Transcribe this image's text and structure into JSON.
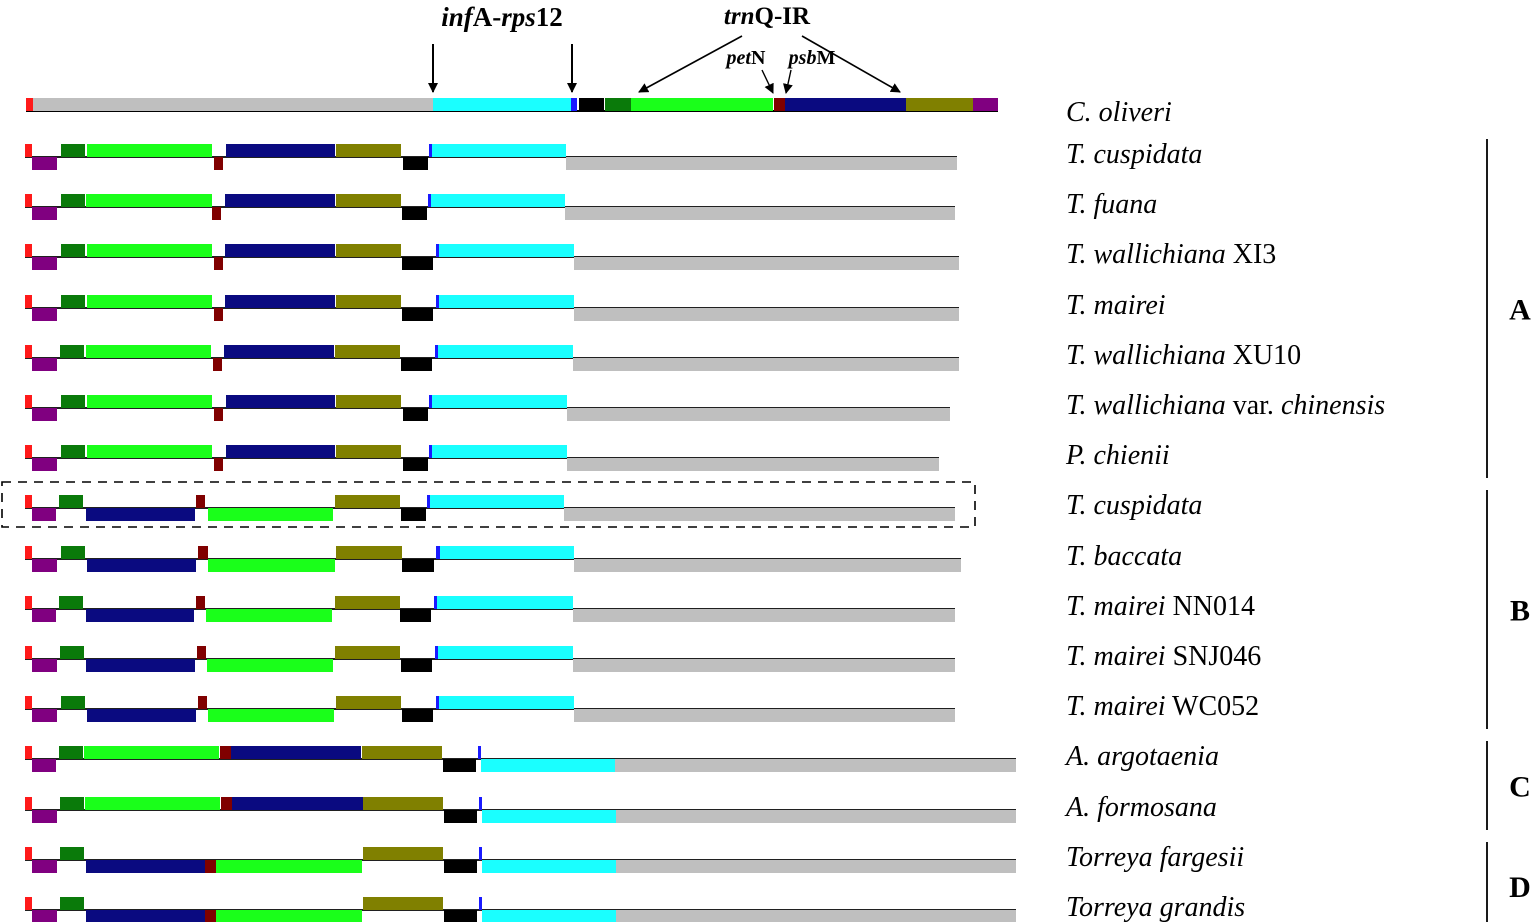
{
  "colors": {
    "red": "#ff1a1a",
    "purple": "#800080",
    "darkgreen": "#0a7a0a",
    "lime": "#1aff1a",
    "maroon": "#800000",
    "navy": "#0a0a80",
    "olive": "#808000",
    "black": "#000000",
    "blue": "#1a1aff",
    "cyan": "#1affff",
    "gray": "#bfbfbf"
  },
  "annotations": {
    "infA_rps12": {
      "italic_1": "inf",
      "plain_1": "A-",
      "italic_2": "rps",
      "plain_2": "12"
    },
    "trnQ_IR": {
      "italic": "trn",
      "plain": "Q-IR"
    },
    "petN": {
      "italic": "pet",
      "plain": "N"
    },
    "psbM": {
      "italic": "psb",
      "plain": "M"
    }
  },
  "reference": {
    "label": "C. oliveri",
    "segments": [
      {
        "color": "red",
        "start": 26,
        "end": 33
      },
      {
        "color": "gray",
        "start": 33,
        "end": 433
      },
      {
        "color": "cyan",
        "start": 433,
        "end": 571
      },
      {
        "color": "blue",
        "start": 571,
        "end": 577
      },
      {
        "color": "black",
        "start": 579,
        "end": 604
      },
      {
        "color": "darkgreen",
        "start": 605,
        "end": 631
      },
      {
        "color": "lime",
        "start": 631,
        "end": 773
      },
      {
        "color": "maroon",
        "start": 774,
        "end": 785
      },
      {
        "color": "navy",
        "start": 785,
        "end": 906
      },
      {
        "color": "olive",
        "start": 906,
        "end": 973
      },
      {
        "color": "purple",
        "start": 973,
        "end": 998
      }
    ]
  },
  "species": [
    {
      "italic": "T. cuspidata",
      "plain": "",
      "line": [
        25,
        957
      ],
      "above": [
        [
          "red",
          25,
          32
        ],
        [
          "darkgreen",
          61,
          85
        ],
        [
          "lime",
          87,
          212
        ],
        [
          "navy",
          226,
          335
        ],
        [
          "olive",
          336,
          401
        ],
        [
          "blue",
          429,
          432
        ],
        [
          "cyan",
          432,
          566
        ]
      ],
      "below": [
        [
          "purple",
          32,
          57
        ],
        [
          "maroon",
          214,
          223
        ],
        [
          "black",
          403,
          428
        ],
        [
          "gray",
          566,
          957
        ]
      ]
    },
    {
      "italic": "T. fuana",
      "plain": "",
      "line": [
        25,
        955
      ],
      "above": [
        [
          "red",
          25,
          32
        ],
        [
          "darkgreen",
          61,
          85
        ],
        [
          "lime",
          86,
          212
        ],
        [
          "navy",
          225,
          335
        ],
        [
          "olive",
          336,
          401
        ],
        [
          "blue",
          428,
          431
        ],
        [
          "cyan",
          431,
          565
        ]
      ],
      "below": [
        [
          "purple",
          32,
          57
        ],
        [
          "maroon",
          212,
          221
        ],
        [
          "black",
          402,
          427
        ],
        [
          "gray",
          565,
          955
        ]
      ]
    },
    {
      "italic": "T. wallichiana",
      "plain": " XI3",
      "line": [
        25,
        959
      ],
      "above": [
        [
          "red",
          25,
          32
        ],
        [
          "darkgreen",
          61,
          85
        ],
        [
          "lime",
          87,
          212
        ],
        [
          "navy",
          225,
          335
        ],
        [
          "olive",
          336,
          401
        ],
        [
          "blue",
          436,
          439
        ],
        [
          "cyan",
          439,
          574
        ]
      ],
      "below": [
        [
          "purple",
          32,
          57
        ],
        [
          "maroon",
          214,
          223
        ],
        [
          "black",
          402,
          433
        ],
        [
          "gray",
          574,
          959
        ]
      ]
    },
    {
      "italic": "T. mairei",
      "plain": "",
      "line": [
        25,
        959
      ],
      "above": [
        [
          "red",
          25,
          32
        ],
        [
          "darkgreen",
          61,
          85
        ],
        [
          "lime",
          87,
          212
        ],
        [
          "navy",
          225,
          335
        ],
        [
          "olive",
          336,
          401
        ],
        [
          "blue",
          436,
          439
        ],
        [
          "cyan",
          439,
          574
        ]
      ],
      "below": [
        [
          "purple",
          32,
          57
        ],
        [
          "maroon",
          214,
          223
        ],
        [
          "black",
          402,
          433
        ],
        [
          "gray",
          574,
          959
        ]
      ]
    },
    {
      "italic": "T. wallichiana",
      "plain": " XU10",
      "line": [
        25,
        959
      ],
      "above": [
        [
          "red",
          25,
          32
        ],
        [
          "darkgreen",
          60,
          84
        ],
        [
          "lime",
          86,
          211
        ],
        [
          "navy",
          224,
          334
        ],
        [
          "olive",
          335,
          400
        ],
        [
          "blue",
          435,
          438
        ],
        [
          "cyan",
          438,
          573
        ]
      ],
      "below": [
        [
          "purple",
          32,
          57
        ],
        [
          "maroon",
          213,
          222
        ],
        [
          "black",
          401,
          432
        ],
        [
          "gray",
          573,
          959
        ]
      ]
    },
    {
      "italic": "T. wallichiana",
      "plain": " var. ",
      "italic2": "chinensis",
      "line": [
        25,
        950
      ],
      "above": [
        [
          "red",
          25,
          32
        ],
        [
          "darkgreen",
          61,
          85
        ],
        [
          "lime",
          87,
          212
        ],
        [
          "navy",
          226,
          335
        ],
        [
          "olive",
          336,
          401
        ],
        [
          "blue",
          429,
          432
        ],
        [
          "cyan",
          432,
          567
        ]
      ],
      "below": [
        [
          "purple",
          32,
          57
        ],
        [
          "maroon",
          214,
          223
        ],
        [
          "black",
          403,
          428
        ],
        [
          "gray",
          567,
          950
        ]
      ]
    },
    {
      "italic": "P. chienii",
      "plain": "",
      "line": [
        25,
        939
      ],
      "above": [
        [
          "red",
          25,
          32
        ],
        [
          "darkgreen",
          61,
          85
        ],
        [
          "lime",
          87,
          212
        ],
        [
          "navy",
          226,
          335
        ],
        [
          "olive",
          336,
          401
        ],
        [
          "blue",
          429,
          432
        ],
        [
          "cyan",
          432,
          567
        ]
      ],
      "below": [
        [
          "purple",
          32,
          57
        ],
        [
          "maroon",
          214,
          223
        ],
        [
          "black",
          403,
          428
        ],
        [
          "gray",
          567,
          939
        ]
      ]
    },
    {
      "italic": "T. cuspidata",
      "plain": "",
      "line": [
        25,
        955
      ],
      "above": [
        [
          "red",
          25,
          32
        ],
        [
          "darkgreen",
          59,
          83
        ],
        [
          "maroon",
          196,
          205
        ],
        [
          "olive",
          335,
          400
        ],
        [
          "blue",
          427,
          430
        ],
        [
          "cyan",
          430,
          564
        ]
      ],
      "below": [
        [
          "purple",
          32,
          56
        ],
        [
          "navy",
          86,
          195
        ],
        [
          "lime",
          208,
          333
        ],
        [
          "black",
          401,
          426
        ],
        [
          "gray",
          564,
          955
        ]
      ]
    },
    {
      "italic": "T. baccata",
      "plain": "",
      "line": [
        25,
        961
      ],
      "above": [
        [
          "red",
          25,
          32
        ],
        [
          "darkgreen",
          61,
          85
        ],
        [
          "maroon",
          198,
          208
        ],
        [
          "olive",
          336,
          402
        ],
        [
          "blue",
          436,
          440
        ],
        [
          "cyan",
          440,
          574
        ]
      ],
      "below": [
        [
          "purple",
          32,
          57
        ],
        [
          "navy",
          87,
          196
        ],
        [
          "lime",
          208,
          335
        ],
        [
          "black",
          402,
          434
        ],
        [
          "gray",
          574,
          961
        ]
      ]
    },
    {
      "italic": "T. mairei",
      "plain": " NN014",
      "line": [
        25,
        955
      ],
      "above": [
        [
          "red",
          25,
          32
        ],
        [
          "darkgreen",
          59,
          83
        ],
        [
          "maroon",
          196,
          205
        ],
        [
          "olive",
          335,
          400
        ],
        [
          "blue",
          434,
          437
        ],
        [
          "cyan",
          437,
          573
        ]
      ],
      "below": [
        [
          "purple",
          32,
          56
        ],
        [
          "navy",
          86,
          194
        ],
        [
          "lime",
          206,
          332
        ],
        [
          "black",
          400,
          431
        ],
        [
          "gray",
          573,
          955
        ]
      ]
    },
    {
      "italic": "T. mairei",
      "plain": " SNJ046",
      "line": [
        25,
        955
      ],
      "above": [
        [
          "red",
          25,
          32
        ],
        [
          "darkgreen",
          60,
          84
        ],
        [
          "maroon",
          197,
          206
        ],
        [
          "olive",
          335,
          400
        ],
        [
          "blue",
          435,
          438
        ],
        [
          "cyan",
          438,
          573
        ]
      ],
      "below": [
        [
          "purple",
          32,
          57
        ],
        [
          "navy",
          86,
          195
        ],
        [
          "lime",
          207,
          333
        ],
        [
          "black",
          401,
          432
        ],
        [
          "gray",
          573,
          955
        ]
      ]
    },
    {
      "italic": "T. mairei",
      "plain": " WC052",
      "line": [
        25,
        955
      ],
      "above": [
        [
          "red",
          25,
          32
        ],
        [
          "darkgreen",
          61,
          85
        ],
        [
          "maroon",
          198,
          207
        ],
        [
          "olive",
          336,
          401
        ],
        [
          "blue",
          436,
          439
        ],
        [
          "cyan",
          439,
          574
        ]
      ],
      "below": [
        [
          "purple",
          32,
          57
        ],
        [
          "navy",
          87,
          196
        ],
        [
          "lime",
          208,
          334
        ],
        [
          "black",
          402,
          433
        ],
        [
          "gray",
          574,
          955
        ]
      ]
    },
    {
      "italic": "A. argotaenia",
      "plain": "",
      "line": [
        25,
        1016
      ],
      "above": [
        [
          "red",
          25,
          32
        ],
        [
          "darkgreen",
          59,
          83
        ],
        [
          "lime",
          84,
          219
        ],
        [
          "maroon",
          220,
          231
        ],
        [
          "navy",
          231,
          361
        ],
        [
          "olive",
          362,
          442
        ],
        [
          "blue",
          478,
          481
        ]
      ],
      "below": [
        [
          "purple",
          32,
          56
        ],
        [
          "black",
          443,
          476
        ],
        [
          "cyan",
          481,
          615
        ],
        [
          "gray",
          615,
          1016
        ]
      ]
    },
    {
      "italic": "A. formosana",
      "plain": "",
      "line": [
        25,
        1016
      ],
      "above": [
        [
          "red",
          25,
          32
        ],
        [
          "darkgreen",
          60,
          84
        ],
        [
          "lime",
          85,
          220
        ],
        [
          "maroon",
          221,
          232
        ],
        [
          "navy",
          232,
          363
        ],
        [
          "olive",
          363,
          443
        ],
        [
          "blue",
          479,
          482
        ]
      ],
      "below": [
        [
          "purple",
          32,
          57
        ],
        [
          "black",
          444,
          477
        ],
        [
          "cyan",
          482,
          616
        ],
        [
          "gray",
          616,
          1016
        ]
      ]
    },
    {
      "italic": "Torreya fargesii",
      "plain": "",
      "line": [
        25,
        1016
      ],
      "above": [
        [
          "red",
          25,
          32
        ],
        [
          "darkgreen",
          60,
          84
        ],
        [
          "olive",
          363,
          443
        ],
        [
          "blue",
          479,
          482
        ]
      ],
      "below": [
        [
          "purple",
          32,
          57
        ],
        [
          "navy",
          86,
          205
        ],
        [
          "maroon",
          205,
          216
        ],
        [
          "lime",
          216,
          362
        ],
        [
          "black",
          444,
          477
        ],
        [
          "cyan",
          482,
          616
        ],
        [
          "gray",
          616,
          1016
        ]
      ]
    },
    {
      "italic": "Torreya grandis",
      "plain": "",
      "line": [
        25,
        1016
      ],
      "above": [
        [
          "red",
          25,
          32
        ],
        [
          "darkgreen",
          60,
          84
        ],
        [
          "olive",
          363,
          443
        ],
        [
          "blue",
          479,
          482
        ]
      ],
      "below": [
        [
          "purple",
          32,
          57
        ],
        [
          "navy",
          86,
          205
        ],
        [
          "maroon",
          205,
          216
        ],
        [
          "lime",
          216,
          362
        ],
        [
          "black",
          444,
          477
        ],
        [
          "cyan",
          482,
          616
        ],
        [
          "gray",
          616,
          1016
        ]
      ]
    }
  ],
  "groups": [
    {
      "label": "A",
      "first": 0,
      "last": 6
    },
    {
      "label": "B",
      "first": 7,
      "last": 11
    },
    {
      "label": "C",
      "first": 12,
      "last": 13
    },
    {
      "label": "D",
      "first": 14,
      "last": 15
    }
  ]
}
